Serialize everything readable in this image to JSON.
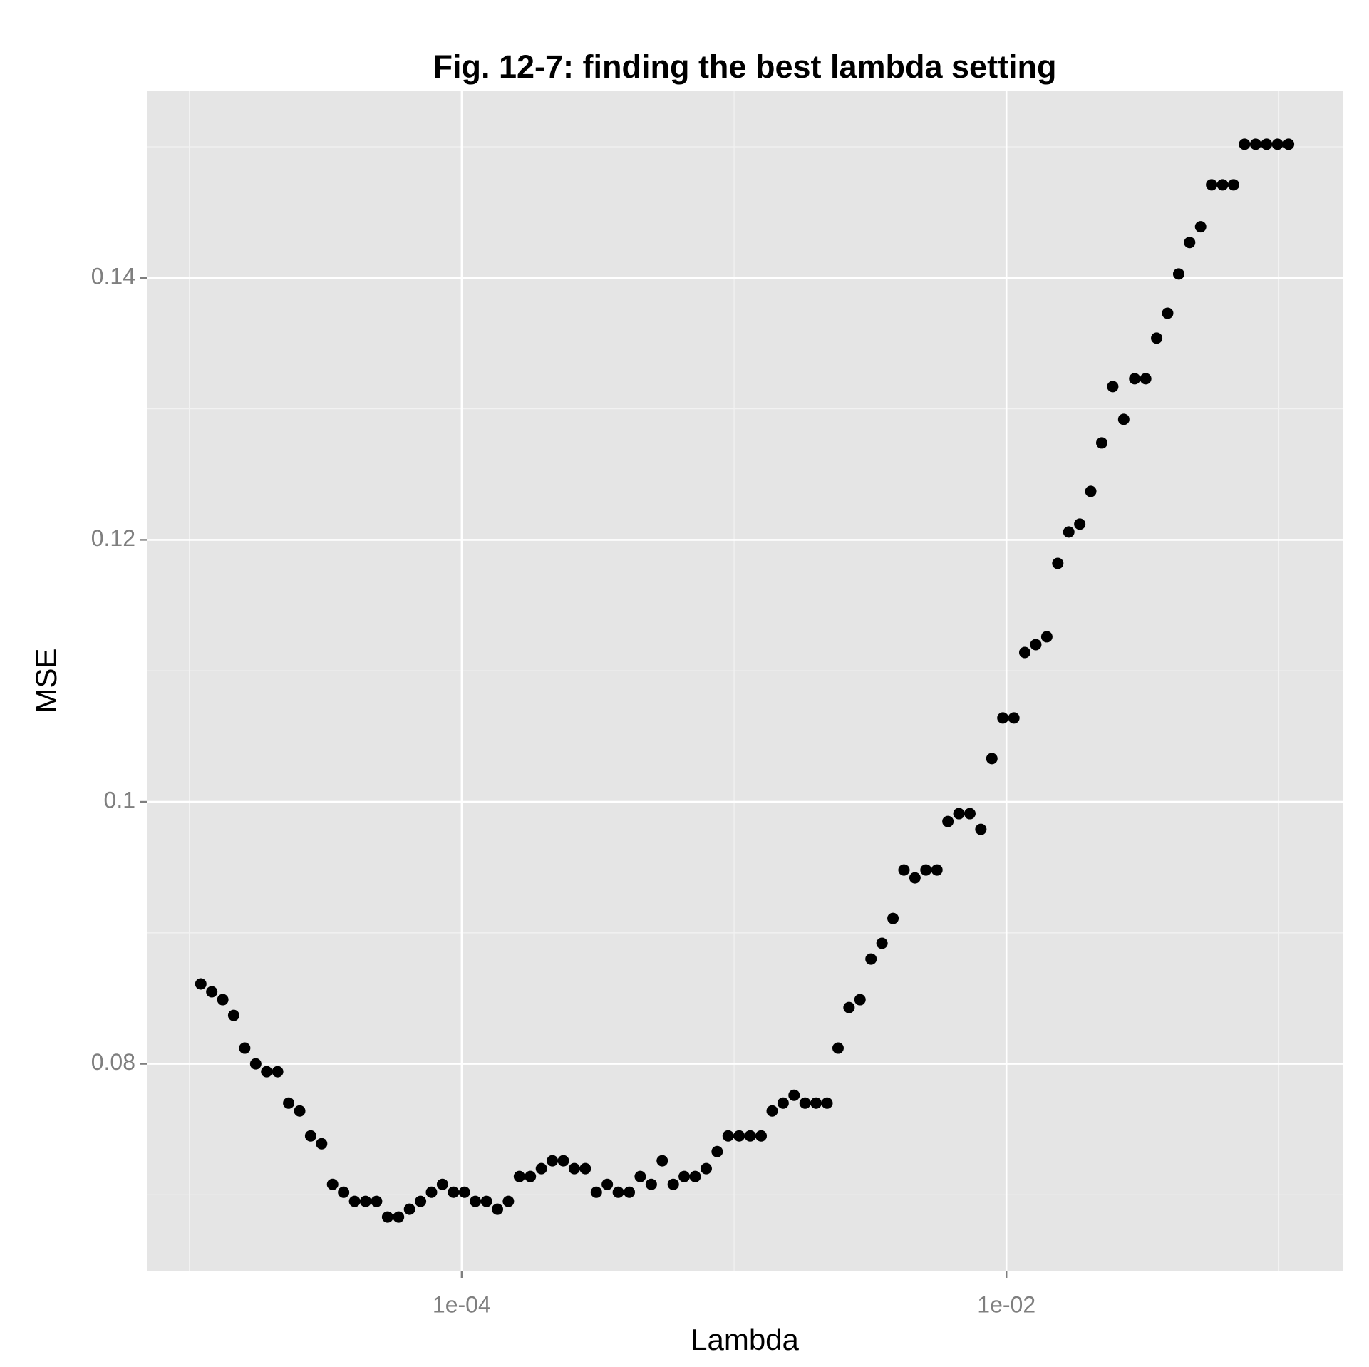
{
  "chart_data": {
    "type": "scatter",
    "title": "Fig. 12-7: finding the best lambda setting",
    "x_label": "Lambda",
    "y_label": "MSE",
    "x_log": true,
    "grid": true,
    "panel_color": "#e5e5e5",
    "xlim": [
      6.98e-06,
      0.1726
    ],
    "ylim": [
      0.0642,
      0.1543
    ],
    "xticks": [
      {
        "value": 0.0001,
        "label": "1e-04"
      },
      {
        "value": 0.01,
        "label": "1e-02"
      }
    ],
    "xminor": [
      1e-05,
      0.001,
      0.1
    ],
    "yticks": [
      0.08,
      0.1,
      0.12,
      0.14
    ],
    "yminor": [
      0.07,
      0.09,
      0.11,
      0.13,
      0.15
    ],
    "series": [
      {
        "color": "#000000",
        "x": [
          1.102e-05,
          1.209e-05,
          1.327e-05,
          1.455e-05,
          1.597e-05,
          1.753e-05,
          1.923e-05,
          2.11e-05,
          2.316e-05,
          2.542e-05,
          2.789e-05,
          3.06e-05,
          3.358e-05,
          3.685e-05,
          4.045e-05,
          4.438e-05,
          4.869e-05,
          5.344e-05,
          5.863e-05,
          6.435e-05,
          7.061e-05,
          7.747e-05,
          8.502e-05,
          9.328e-05,
          0.0001024,
          0.0001123,
          0.0001233,
          0.0001353,
          0.0001484,
          0.0001629,
          0.0001787,
          0.0001962,
          0.0002153,
          0.0002362,
          0.0002592,
          0.0002844,
          0.0003121,
          0.0003424,
          0.0003758,
          0.0004124,
          0.0004524,
          0.0004966,
          0.0005449,
          0.000598,
          0.0006561,
          0.0007199,
          0.0007902,
          0.000867,
          0.0009515,
          0.001044,
          0.001146,
          0.001257,
          0.00138,
          0.001514,
          0.001661,
          0.001823,
          0.002,
          0.002195,
          0.002409,
          0.002643,
          0.0029,
          0.003183,
          0.003493,
          0.003833,
          0.004206,
          0.004615,
          0.005065,
          0.005557,
          0.006099,
          0.006692,
          0.007343,
          0.008057,
          0.008841,
          0.009703,
          0.01065,
          0.01168,
          0.01282,
          0.01407,
          0.01544,
          0.01694,
          0.01859,
          0.0204,
          0.02239,
          0.02457,
          0.02696,
          0.02958,
          0.03246,
          0.03562,
          0.03908,
          0.0429,
          0.04706,
          0.05164,
          0.05667,
          0.06219,
          0.06823,
          0.07486,
          0.08219,
          0.09016,
          0.09894,
          0.1086
        ],
        "values": [
          0.0861,
          0.0855,
          0.0849,
          0.0837,
          0.0812,
          0.08,
          0.0794,
          0.0794,
          0.077,
          0.0764,
          0.0745,
          0.0739,
          0.0708,
          0.0702,
          0.0695,
          0.0695,
          0.0695,
          0.0683,
          0.0683,
          0.0689,
          0.0695,
          0.0702,
          0.0708,
          0.0702,
          0.0702,
          0.0695,
          0.0695,
          0.0689,
          0.0695,
          0.0714,
          0.0714,
          0.072,
          0.0726,
          0.0726,
          0.072,
          0.072,
          0.0702,
          0.0708,
          0.0702,
          0.0702,
          0.0714,
          0.0708,
          0.0726,
          0.0708,
          0.0714,
          0.0714,
          0.072,
          0.0733,
          0.0745,
          0.0745,
          0.0745,
          0.0745,
          0.0764,
          0.077,
          0.0776,
          0.077,
          0.077,
          0.077,
          0.0812,
          0.0843,
          0.0849,
          0.088,
          0.0892,
          0.0911,
          0.0948,
          0.0942,
          0.0948,
          0.0948,
          0.0985,
          0.0991,
          0.0991,
          0.0979,
          0.1033,
          0.1064,
          0.1064,
          0.1114,
          0.112,
          0.1126,
          0.1182,
          0.1206,
          0.1212,
          0.1237,
          0.1274,
          0.1317,
          0.1292,
          0.1323,
          0.1323,
          0.1354,
          0.1373,
          0.1403,
          0.1427,
          0.1439,
          0.1471,
          0.1471,
          0.1471,
          0.1502,
          0.1502,
          0.1502,
          0.1502,
          0.1502
        ]
      }
    ]
  }
}
